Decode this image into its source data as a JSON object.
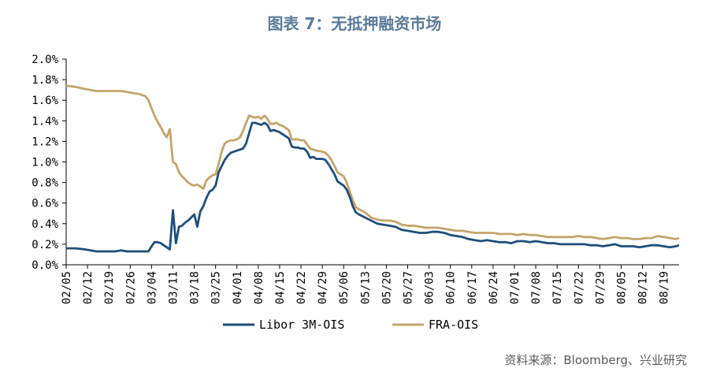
{
  "title": "图表 7：无抵押融资市场",
  "source": "资料来源：Bloomberg、兴业研究",
  "chart_data": {
    "type": "line",
    "title": "图表 7：无抵押融资市场",
    "ylim": [
      0,
      2.0
    ],
    "y_ticks": [
      "0.0%",
      "0.2%",
      "0.4%",
      "0.6%",
      "0.8%",
      "1.0%",
      "1.2%",
      "1.4%",
      "1.6%",
      "1.8%",
      "2.0%"
    ],
    "x_ticks": [
      "02/05",
      "02/12",
      "02/19",
      "02/26",
      "03/04",
      "03/11",
      "03/18",
      "03/25",
      "04/01",
      "04/08",
      "04/15",
      "04/22",
      "04/29",
      "05/06",
      "05/13",
      "05/20",
      "05/27",
      "06/03",
      "06/10",
      "06/17",
      "06/24",
      "07/01",
      "07/08",
      "07/15",
      "07/22",
      "07/29",
      "08/05",
      "08/12",
      "08/19"
    ],
    "x_range_days": [
      0,
      201
    ],
    "legend_position": "bottom-center",
    "grid": false,
    "series": [
      {
        "name": "Libor 3M-OIS",
        "color": "#1f4e79",
        "points": [
          [
            0,
            0.16
          ],
          [
            3,
            0.16
          ],
          [
            6,
            0.15
          ],
          [
            8,
            0.14
          ],
          [
            10,
            0.13
          ],
          [
            13,
            0.13
          ],
          [
            16,
            0.13
          ],
          [
            18,
            0.14
          ],
          [
            20,
            0.13
          ],
          [
            22,
            0.13
          ],
          [
            24,
            0.13
          ],
          [
            25,
            0.13
          ],
          [
            26,
            0.13
          ],
          [
            27,
            0.13
          ],
          [
            28,
            0.18
          ],
          [
            29,
            0.22
          ],
          [
            30,
            0.22
          ],
          [
            31,
            0.21
          ],
          [
            32,
            0.19
          ],
          [
            33,
            0.17
          ],
          [
            34,
            0.15
          ],
          [
            35,
            0.53
          ],
          [
            36,
            0.21
          ],
          [
            37,
            0.37
          ],
          [
            38,
            0.38
          ],
          [
            39,
            0.41
          ],
          [
            40,
            0.43
          ],
          [
            41,
            0.46
          ],
          [
            42,
            0.49
          ],
          [
            43,
            0.37
          ],
          [
            44,
            0.52
          ],
          [
            45,
            0.57
          ],
          [
            46,
            0.65
          ],
          [
            47,
            0.71
          ],
          [
            48,
            0.73
          ],
          [
            49,
            0.77
          ],
          [
            50,
            0.9
          ],
          [
            51,
            0.96
          ],
          [
            52,
            1.02
          ],
          [
            53,
            1.06
          ],
          [
            54,
            1.09
          ],
          [
            55,
            1.1
          ],
          [
            56,
            1.11
          ],
          [
            57,
            1.12
          ],
          [
            58,
            1.13
          ],
          [
            59,
            1.18
          ],
          [
            60,
            1.28
          ],
          [
            61,
            1.38
          ],
          [
            62,
            1.38
          ],
          [
            63,
            1.37
          ],
          [
            64,
            1.36
          ],
          [
            65,
            1.38
          ],
          [
            66,
            1.36
          ],
          [
            67,
            1.3
          ],
          [
            68,
            1.31
          ],
          [
            69,
            1.3
          ],
          [
            70,
            1.29
          ],
          [
            71,
            1.27
          ],
          [
            72,
            1.25
          ],
          [
            73,
            1.23
          ],
          [
            74,
            1.15
          ],
          [
            75,
            1.14
          ],
          [
            76,
            1.14
          ],
          [
            77,
            1.13
          ],
          [
            78,
            1.13
          ],
          [
            79,
            1.1
          ],
          [
            80,
            1.04
          ],
          [
            81,
            1.05
          ],
          [
            82,
            1.03
          ],
          [
            84,
            1.03
          ],
          [
            85,
            1.02
          ],
          [
            86,
            0.98
          ],
          [
            87,
            0.93
          ],
          [
            88,
            0.88
          ],
          [
            89,
            0.81
          ],
          [
            90,
            0.79
          ],
          [
            91,
            0.77
          ],
          [
            92,
            0.73
          ],
          [
            93,
            0.66
          ],
          [
            94,
            0.57
          ],
          [
            95,
            0.51
          ],
          [
            96,
            0.49
          ],
          [
            98,
            0.46
          ],
          [
            100,
            0.43
          ],
          [
            102,
            0.4
          ],
          [
            104,
            0.39
          ],
          [
            106,
            0.38
          ],
          [
            108,
            0.37
          ],
          [
            110,
            0.34
          ],
          [
            112,
            0.33
          ],
          [
            114,
            0.32
          ],
          [
            116,
            0.31
          ],
          [
            118,
            0.31
          ],
          [
            120,
            0.32
          ],
          [
            122,
            0.32
          ],
          [
            124,
            0.31
          ],
          [
            126,
            0.29
          ],
          [
            128,
            0.28
          ],
          [
            130,
            0.27
          ],
          [
            132,
            0.25
          ],
          [
            134,
            0.24
          ],
          [
            136,
            0.23
          ],
          [
            138,
            0.24
          ],
          [
            140,
            0.23
          ],
          [
            142,
            0.22
          ],
          [
            144,
            0.22
          ],
          [
            146,
            0.21
          ],
          [
            148,
            0.23
          ],
          [
            150,
            0.23
          ],
          [
            152,
            0.22
          ],
          [
            154,
            0.23
          ],
          [
            156,
            0.22
          ],
          [
            158,
            0.21
          ],
          [
            160,
            0.21
          ],
          [
            162,
            0.2
          ],
          [
            164,
            0.2
          ],
          [
            166,
            0.2
          ],
          [
            168,
            0.2
          ],
          [
            170,
            0.2
          ],
          [
            172,
            0.19
          ],
          [
            174,
            0.19
          ],
          [
            176,
            0.18
          ],
          [
            178,
            0.19
          ],
          [
            180,
            0.2
          ],
          [
            182,
            0.18
          ],
          [
            184,
            0.18
          ],
          [
            186,
            0.18
          ],
          [
            188,
            0.17
          ],
          [
            190,
            0.18
          ],
          [
            192,
            0.19
          ],
          [
            194,
            0.19
          ],
          [
            196,
            0.18
          ],
          [
            198,
            0.17
          ],
          [
            200,
            0.18
          ],
          [
            201,
            0.19
          ]
        ]
      },
      {
        "name": "FRA-OIS",
        "color": "#c4a46b",
        "points": [
          [
            0,
            1.74
          ],
          [
            3,
            1.73
          ],
          [
            6,
            1.71
          ],
          [
            8,
            1.7
          ],
          [
            10,
            1.69
          ],
          [
            13,
            1.69
          ],
          [
            16,
            1.69
          ],
          [
            18,
            1.69
          ],
          [
            20,
            1.68
          ],
          [
            22,
            1.67
          ],
          [
            24,
            1.66
          ],
          [
            26,
            1.64
          ],
          [
            27,
            1.6
          ],
          [
            28,
            1.52
          ],
          [
            29,
            1.45
          ],
          [
            30,
            1.39
          ],
          [
            31,
            1.34
          ],
          [
            32,
            1.28
          ],
          [
            33,
            1.24
          ],
          [
            34,
            1.32
          ],
          [
            35,
            1.0
          ],
          [
            36,
            0.98
          ],
          [
            37,
            0.9
          ],
          [
            38,
            0.86
          ],
          [
            39,
            0.83
          ],
          [
            40,
            0.8
          ],
          [
            41,
            0.78
          ],
          [
            42,
            0.77
          ],
          [
            43,
            0.78
          ],
          [
            44,
            0.76
          ],
          [
            45,
            0.74
          ],
          [
            46,
            0.82
          ],
          [
            47,
            0.85
          ],
          [
            48,
            0.87
          ],
          [
            49,
            0.88
          ],
          [
            50,
            0.98
          ],
          [
            51,
            1.1
          ],
          [
            52,
            1.18
          ],
          [
            53,
            1.2
          ],
          [
            54,
            1.21
          ],
          [
            55,
            1.21
          ],
          [
            56,
            1.22
          ],
          [
            57,
            1.24
          ],
          [
            58,
            1.3
          ],
          [
            59,
            1.38
          ],
          [
            60,
            1.45
          ],
          [
            61,
            1.44
          ],
          [
            62,
            1.43
          ],
          [
            63,
            1.44
          ],
          [
            64,
            1.42
          ],
          [
            65,
            1.45
          ],
          [
            66,
            1.42
          ],
          [
            67,
            1.37
          ],
          [
            68,
            1.37
          ],
          [
            69,
            1.38
          ],
          [
            70,
            1.36
          ],
          [
            71,
            1.35
          ],
          [
            72,
            1.33
          ],
          [
            73,
            1.31
          ],
          [
            74,
            1.22
          ],
          [
            75,
            1.22
          ],
          [
            76,
            1.22
          ],
          [
            77,
            1.21
          ],
          [
            78,
            1.21
          ],
          [
            79,
            1.17
          ],
          [
            80,
            1.13
          ],
          [
            81,
            1.12
          ],
          [
            82,
            1.11
          ],
          [
            84,
            1.1
          ],
          [
            85,
            1.09
          ],
          [
            86,
            1.06
          ],
          [
            87,
            1.02
          ],
          [
            88,
            0.96
          ],
          [
            89,
            0.9
          ],
          [
            90,
            0.88
          ],
          [
            91,
            0.86
          ],
          [
            92,
            0.8
          ],
          [
            93,
            0.71
          ],
          [
            94,
            0.63
          ],
          [
            95,
            0.56
          ],
          [
            96,
            0.54
          ],
          [
            98,
            0.51
          ],
          [
            100,
            0.46
          ],
          [
            102,
            0.44
          ],
          [
            104,
            0.43
          ],
          [
            106,
            0.43
          ],
          [
            108,
            0.42
          ],
          [
            110,
            0.39
          ],
          [
            112,
            0.38
          ],
          [
            114,
            0.38
          ],
          [
            116,
            0.37
          ],
          [
            118,
            0.36
          ],
          [
            120,
            0.36
          ],
          [
            122,
            0.36
          ],
          [
            124,
            0.35
          ],
          [
            126,
            0.34
          ],
          [
            128,
            0.33
          ],
          [
            130,
            0.33
          ],
          [
            132,
            0.32
          ],
          [
            134,
            0.31
          ],
          [
            136,
            0.31
          ],
          [
            138,
            0.31
          ],
          [
            140,
            0.31
          ],
          [
            142,
            0.3
          ],
          [
            144,
            0.3
          ],
          [
            146,
            0.3
          ],
          [
            148,
            0.29
          ],
          [
            150,
            0.3
          ],
          [
            152,
            0.29
          ],
          [
            154,
            0.29
          ],
          [
            156,
            0.28
          ],
          [
            158,
            0.27
          ],
          [
            160,
            0.27
          ],
          [
            162,
            0.27
          ],
          [
            164,
            0.27
          ],
          [
            166,
            0.27
          ],
          [
            168,
            0.28
          ],
          [
            170,
            0.27
          ],
          [
            172,
            0.27
          ],
          [
            174,
            0.26
          ],
          [
            176,
            0.25
          ],
          [
            178,
            0.26
          ],
          [
            180,
            0.27
          ],
          [
            182,
            0.26
          ],
          [
            184,
            0.26
          ],
          [
            186,
            0.25
          ],
          [
            188,
            0.25
          ],
          [
            190,
            0.26
          ],
          [
            192,
            0.26
          ],
          [
            194,
            0.28
          ],
          [
            196,
            0.27
          ],
          [
            198,
            0.26
          ],
          [
            200,
            0.25
          ],
          [
            201,
            0.26
          ]
        ]
      }
    ]
  }
}
